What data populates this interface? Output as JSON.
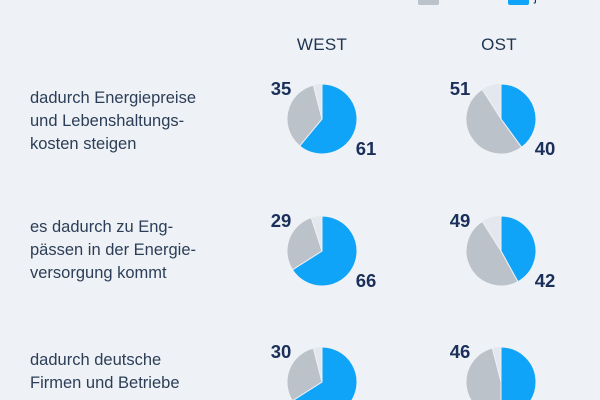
{
  "legend": [
    {
      "label": "",
      "color": "#bcc2ca"
    },
    {
      "label": "j",
      "color": "#0fa4f7"
    }
  ],
  "chart_data": {
    "type": "pie",
    "columns": [
      "WEST",
      "OST"
    ],
    "rows": [
      {
        "label_lines": [
          "dadurch Energiepreise",
          "und Lebenshaltungs-",
          "kosten steigen"
        ],
        "values": [
          {
            "nein": 35,
            "ja": 61
          },
          {
            "nein": 51,
            "ja": 40
          }
        ]
      },
      {
        "label_lines": [
          "es dadurch zu Eng-",
          "pässen in der Energie-",
          "versorgung kommt"
        ],
        "values": [
          {
            "nein": 29,
            "ja": 66
          },
          {
            "nein": 49,
            "ja": 42
          }
        ]
      },
      {
        "label_lines": [
          "dadurch deutsche",
          "Firmen und Betriebe"
        ],
        "values": [
          {
            "nein": 30,
            "ja": null
          },
          {
            "nein": 46,
            "ja": null
          }
        ]
      }
    ],
    "colors": {
      "nein": "#bcc2ca",
      "ja": "#0fa4f7",
      "rest": "#e4e8ee"
    }
  }
}
